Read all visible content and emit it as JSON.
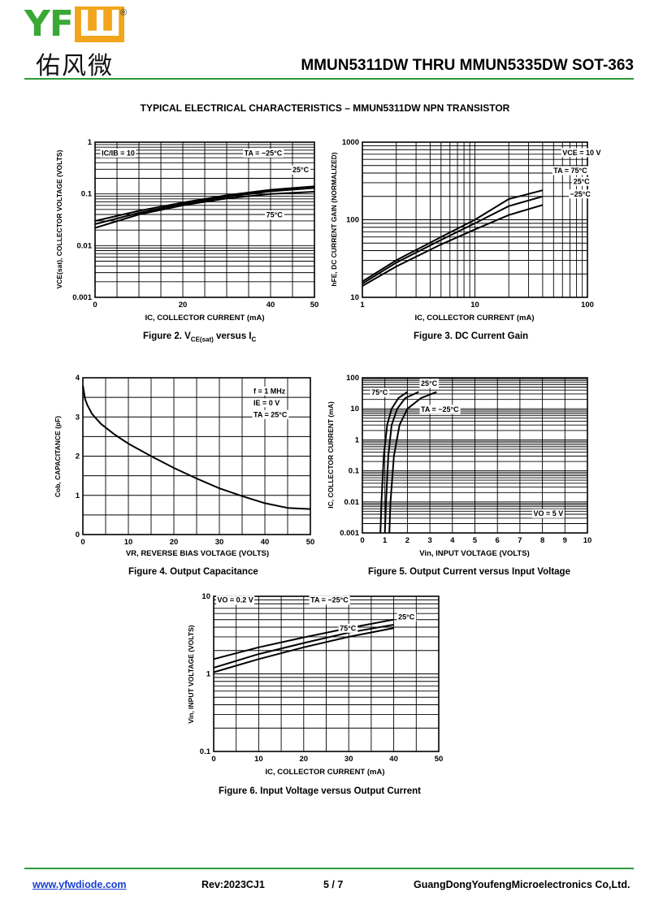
{
  "header": {
    "brand_latin": "YFW",
    "brand_cn": "佑风微",
    "title": "MMUN5311DW THRU MMUN5335DW  SOT-363",
    "colors": {
      "brand_green": "#3aa835",
      "brand_orange": "#f2a51a",
      "rule_green": "#2e9b3a"
    }
  },
  "page_heading": "TYPICAL ELECTRICAL CHARACTERISTICS – MMUN5311DW NPN TRANSISTOR",
  "captions": {
    "fig2_a": "Figure 2. V",
    "fig2_sub": "CE(sat)",
    "fig2_b": " versus I",
    "fig2_sub2": "C",
    "fig3": "Figure 3. DC Current Gain",
    "fig4": "Figure 4. Output Capacitance",
    "fig5": "Figure 5. Output Current versus Input Voltage",
    "fig6": "Figure 6. Input Voltage versus Output Current"
  },
  "footer": {
    "website": "www.yfwdiode.com",
    "rev": "Rev:2023CJ1",
    "page": "5 / 7",
    "company": "GuangDongYoufengMicroelectronics Co,Ltd."
  },
  "chart_data": [
    {
      "id": "fig2",
      "type": "line",
      "xlabel": "IC, COLLECTOR CURRENT (mA)",
      "ylabel": "VCE(sat), COLLECTOR VOLTAGE (VOLTS)",
      "xscale": "linear",
      "yscale": "log",
      "xlim": [
        0,
        50
      ],
      "ylim": [
        0.001,
        1
      ],
      "xticks": [
        0,
        20,
        40,
        50
      ],
      "yticks": [
        0.001,
        0.01,
        0.1,
        1
      ],
      "xtick_labels": [
        "0",
        "20",
        "40",
        "50"
      ],
      "ytick_labels": [
        "0.001",
        "0.01",
        "0.1",
        "1"
      ],
      "annotations": [
        {
          "text": "IC/IB = 10",
          "x": 1.5,
          "y": 0.55
        },
        {
          "text": "TA = −25°C",
          "x": 34,
          "y": 0.55
        },
        {
          "text": "25°C",
          "x": 45,
          "y": 0.26
        },
        {
          "text": "75°C",
          "x": 39,
          "y": 0.035
        }
      ],
      "series": [
        {
          "x": [
            0,
            10,
            20,
            30,
            40,
            50
          ],
          "y": [
            0.022,
            0.04,
            0.06,
            0.082,
            0.1,
            0.11
          ]
        },
        {
          "x": [
            0,
            10,
            20,
            30,
            40,
            50
          ],
          "y": [
            0.026,
            0.043,
            0.064,
            0.088,
            0.112,
            0.13
          ]
        },
        {
          "x": [
            0,
            10,
            20,
            30,
            40,
            50
          ],
          "y": [
            0.03,
            0.047,
            0.068,
            0.094,
            0.12,
            0.14
          ]
        }
      ],
      "grid": true
    },
    {
      "id": "fig3",
      "type": "line",
      "xlabel": "IC, COLLECTOR CURRENT (mA)",
      "ylabel": "hFE, DC CURRENT GAIN (NORMALIZED)",
      "xscale": "log",
      "yscale": "log",
      "xlim": [
        1,
        100
      ],
      "ylim": [
        10,
        1000
      ],
      "xticks": [
        1,
        10,
        100
      ],
      "yticks": [
        10,
        100,
        1000
      ],
      "xtick_labels": [
        "1",
        "10",
        "100"
      ],
      "ytick_labels": [
        "10",
        "100",
        "1000"
      ],
      "annotations": [
        {
          "text": "VCE = 10 V",
          "x": 60,
          "y": 680
        },
        {
          "text": "TA = 75°C",
          "x": 50,
          "y": 400
        },
        {
          "text": "25°C",
          "x": 75,
          "y": 290
        },
        {
          "text": "−25°C",
          "x": 70,
          "y": 200
        }
      ],
      "series": [
        {
          "name": "75°C",
          "x": [
            1,
            2,
            5,
            10,
            20,
            40
          ],
          "y": [
            16,
            30,
            60,
            100,
            185,
            240
          ]
        },
        {
          "name": "25°C",
          "x": [
            1,
            2,
            5,
            10,
            20,
            40
          ],
          "y": [
            15,
            28,
            55,
            90,
            150,
            200
          ]
        },
        {
          "name": "−25°C",
          "x": [
            1,
            2,
            5,
            10,
            20,
            40
          ],
          "y": [
            14,
            25,
            48,
            75,
            115,
            155
          ]
        }
      ],
      "grid": true
    },
    {
      "id": "fig4",
      "type": "line",
      "xlabel": "VR, REVERSE BIAS VOLTAGE (VOLTS)",
      "ylabel": "Cob, CAPACITANCE (pF)",
      "xscale": "linear",
      "yscale": "linear",
      "xlim": [
        0,
        50
      ],
      "ylim": [
        0,
        4
      ],
      "xticks": [
        0,
        10,
        20,
        30,
        40,
        50
      ],
      "yticks": [
        0,
        1,
        2,
        3,
        4
      ],
      "xtick_labels": [
        "0",
        "10",
        "20",
        "30",
        "40",
        "50"
      ],
      "ytick_labels": [
        "0",
        "1",
        "2",
        "3",
        "4"
      ],
      "annotations": [
        {
          "text": "f = 1 MHz",
          "x": 37.5,
          "y": 3.6
        },
        {
          "text": "IE = 0 V",
          "x": 37.5,
          "y": 3.3
        },
        {
          "text": "TA = 25°C",
          "x": 37.5,
          "y": 3.0
        }
      ],
      "series": [
        {
          "x": [
            0,
            0.5,
            1,
            2,
            4,
            7,
            10,
            15,
            20,
            25,
            30,
            35,
            40,
            45,
            50
          ],
          "y": [
            3.8,
            3.45,
            3.3,
            3.08,
            2.82,
            2.55,
            2.32,
            2.0,
            1.7,
            1.43,
            1.18,
            0.98,
            0.8,
            0.68,
            0.65
          ]
        }
      ],
      "grid": true
    },
    {
      "id": "fig5",
      "type": "line",
      "xlabel": "Vin, INPUT VOLTAGE (VOLTS)",
      "ylabel": "IC, COLLECTOR CURRENT (mA)",
      "xscale": "linear",
      "yscale": "log",
      "xlim": [
        0,
        10
      ],
      "ylim": [
        0.001,
        100
      ],
      "xticks": [
        0,
        1,
        2,
        3,
        4,
        5,
        6,
        7,
        8,
        9,
        10
      ],
      "yticks": [
        0.001,
        0.01,
        0.1,
        1,
        10,
        100
      ],
      "xtick_labels": [
        "0",
        "1",
        "2",
        "3",
        "4",
        "5",
        "6",
        "7",
        "8",
        "9",
        "10"
      ],
      "ytick_labels": [
        "0.001",
        "0.01",
        "0.1",
        "1",
        "10",
        "100"
      ],
      "annotations": [
        {
          "text": "25°C",
          "x": 2.6,
          "y": 55
        },
        {
          "text": "75°C",
          "x": 0.4,
          "y": 28
        },
        {
          "text": "TA = −25°C",
          "x": 2.6,
          "y": 8
        },
        {
          "text": "VO = 5 V",
          "x": 7.6,
          "y": 0.0035
        }
      ],
      "series": [
        {
          "name": "75°C",
          "x": [
            0.8,
            0.85,
            0.95,
            1.1,
            1.3,
            1.6,
            2.0
          ],
          "y": [
            0.001,
            0.01,
            0.3,
            3,
            10,
            22,
            35
          ]
        },
        {
          "name": "25°C",
          "x": [
            1.0,
            1.05,
            1.15,
            1.3,
            1.55,
            1.9,
            2.5
          ],
          "y": [
            0.001,
            0.01,
            0.3,
            3,
            10,
            22,
            35
          ]
        },
        {
          "name": "−25°C",
          "x": [
            1.2,
            1.25,
            1.4,
            1.65,
            2.0,
            2.6,
            3.3
          ],
          "y": [
            0.001,
            0.01,
            0.3,
            3,
            10,
            22,
            35
          ]
        }
      ],
      "grid": true
    },
    {
      "id": "fig6",
      "type": "line",
      "xlabel": "IC, COLLECTOR CURRENT (mA)",
      "ylabel": "Vin, INPUT VOLTAGE (VOLTS)",
      "xscale": "linear",
      "yscale": "log",
      "xlim": [
        0,
        50
      ],
      "ylim": [
        0.1,
        10
      ],
      "xticks": [
        0,
        10,
        20,
        30,
        40,
        50
      ],
      "yticks": [
        0.1,
        1,
        10
      ],
      "xtick_labels": [
        "0",
        "10",
        "20",
        "30",
        "40",
        "50"
      ],
      "ytick_labels": [
        "0.1",
        "1",
        "10"
      ],
      "annotations": [
        {
          "text": "VO = 0.2 V",
          "x": 0.8,
          "y": 8.3
        },
        {
          "text": "TA = −25°C",
          "x": 21.5,
          "y": 8.3
        },
        {
          "text": "25°C",
          "x": 41,
          "y": 5.0
        },
        {
          "text": "75°C",
          "x": 28,
          "y": 3.6
        }
      ],
      "series": [
        {
          "name": "−25°C",
          "x": [
            0,
            10,
            20,
            30,
            40
          ],
          "y": [
            1.55,
            2.2,
            2.95,
            3.9,
            5.0
          ]
        },
        {
          "name": "25°C",
          "x": [
            0,
            10,
            20,
            30,
            40
          ],
          "y": [
            1.2,
            1.8,
            2.5,
            3.4,
            4.3
          ]
        },
        {
          "name": "75°C",
          "x": [
            0,
            10,
            20,
            30,
            40
          ],
          "y": [
            1.05,
            1.55,
            2.2,
            3.0,
            3.9
          ]
        }
      ],
      "grid": true
    }
  ]
}
